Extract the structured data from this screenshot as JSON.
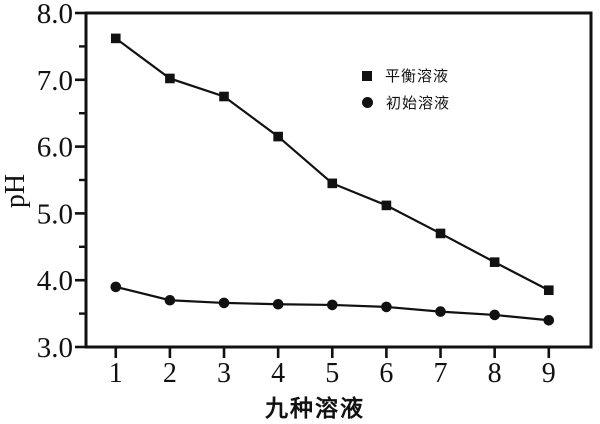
{
  "figure": {
    "background": "#ffffff",
    "ink_color": "#111111"
  },
  "chart_data": {
    "type": "line",
    "title": "",
    "xlabel": "九种溶液",
    "ylabel": "pH",
    "x": [
      1,
      2,
      3,
      4,
      5,
      6,
      7,
      8,
      9
    ],
    "x_tick_labels": [
      "1",
      "2",
      "3",
      "4",
      "5",
      "6",
      "7",
      "8",
      "9"
    ],
    "xlim": [
      0.45,
      9.78
    ],
    "ylim": [
      3.0,
      8.0
    ],
    "y_major_ticks": [
      3.0,
      4.0,
      5.0,
      6.0,
      7.0,
      8.0
    ],
    "y_tick_labels": [
      "3.0",
      "4.0",
      "5.0",
      "6.0",
      "7.0",
      "8.0"
    ],
    "y_minor_ticks": [
      3.5,
      4.5,
      5.5,
      6.5,
      7.5
    ],
    "grid": false,
    "legend_position": "upper-center-inside",
    "series": [
      {
        "name": "平衡溶液",
        "marker": "square",
        "color": "#111111",
        "values": [
          7.62,
          7.02,
          6.75,
          6.15,
          5.45,
          5.12,
          4.7,
          4.27,
          3.85
        ]
      },
      {
        "name": "初始溶液",
        "marker": "circle",
        "color": "#111111",
        "values": [
          3.9,
          3.7,
          3.66,
          3.64,
          3.63,
          3.6,
          3.53,
          3.48,
          3.4
        ]
      }
    ]
  }
}
